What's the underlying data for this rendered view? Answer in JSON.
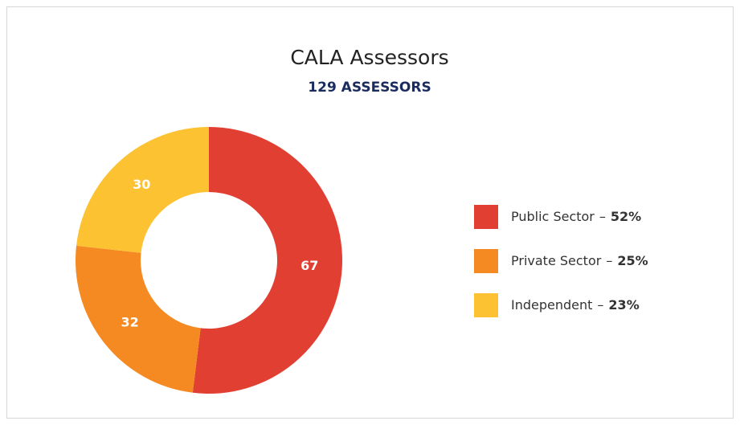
{
  "chart_data": {
    "type": "donut",
    "title": "CALA Assessors",
    "subtitle": "129 ASSESSORS",
    "categories": [
      "Public Sector",
      "Private Sector",
      "Independent"
    ],
    "values": [
      67,
      32,
      30
    ],
    "colors": [
      "#e23f33",
      "#f58a22",
      "#fdc232"
    ],
    "separator": "–",
    "percentages": [
      52,
      25,
      23
    ],
    "percentage_labels": [
      "52%",
      "25%",
      "23%"
    ]
  }
}
